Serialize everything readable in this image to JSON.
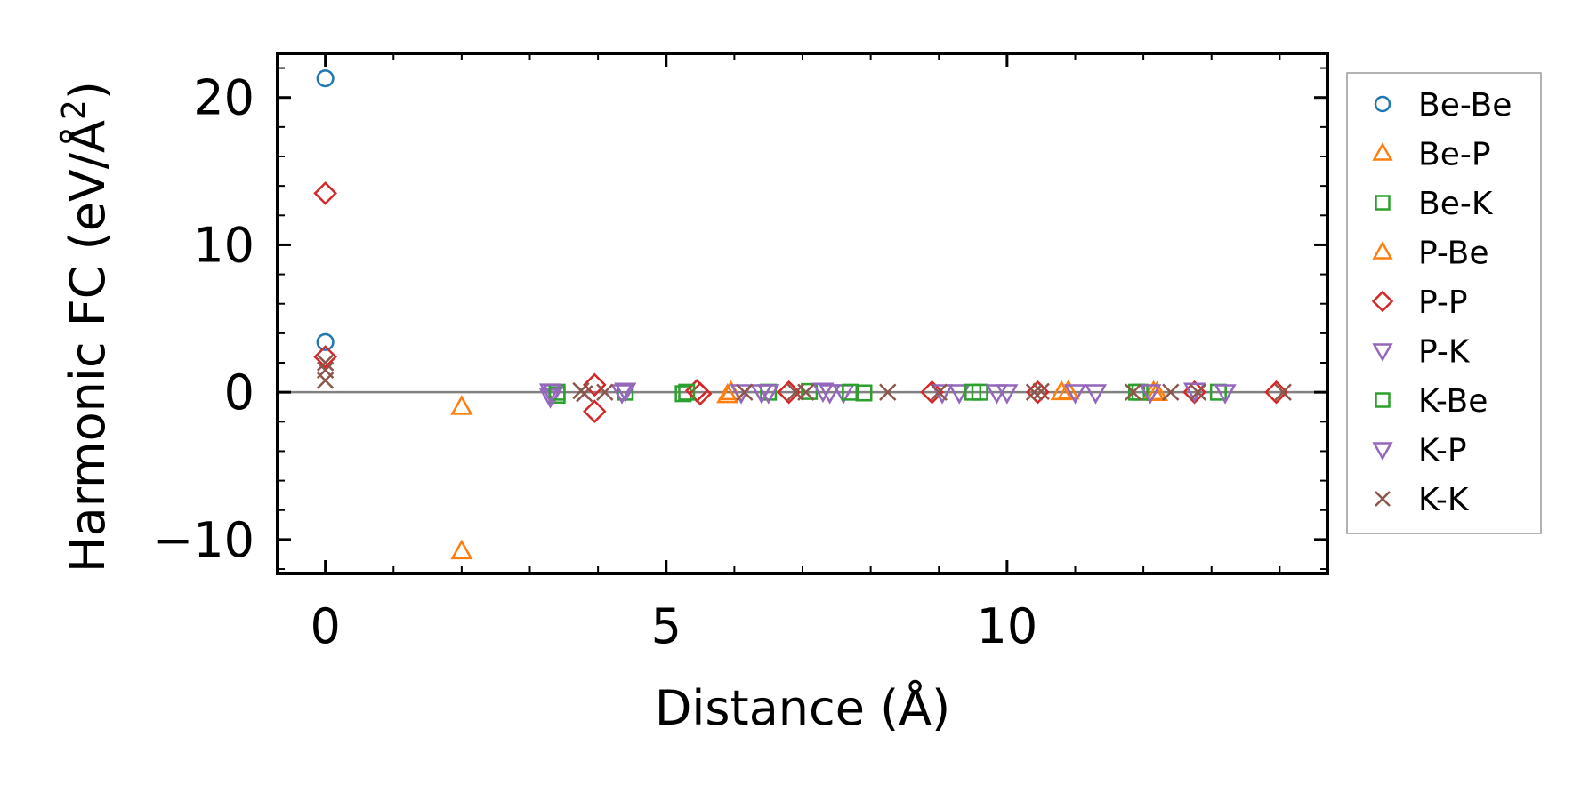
{
  "chart_data": {
    "type": "scatter",
    "xlabel": "Distance (Å)",
    "ylabel_main": "Harmonic FC (eV/Å",
    "ylabel_sup": "2",
    "ylabel_close": ")",
    "xlim": [
      -0.7,
      14.7
    ],
    "ylim": [
      -12.3,
      23.0
    ],
    "x_ticks": [
      0,
      5,
      10
    ],
    "x_tick_labels": [
      "0",
      "5",
      "10"
    ],
    "y_ticks": [
      -10,
      0,
      10,
      20
    ],
    "y_tick_labels": [
      "−10",
      "0",
      "10",
      "20"
    ],
    "x_minor_step": 1,
    "y_minor_step": 2,
    "zero_line": true,
    "grid": false,
    "legend_position": "right, outside",
    "series": [
      {
        "name": "Be-Be",
        "marker": "circle",
        "color": "#1f77b4",
        "points": [
          [
            0,
            21.3
          ],
          [
            0,
            3.4
          ]
        ]
      },
      {
        "name": "Be-P",
        "marker": "triangle-up",
        "color": "#ff7f0e",
        "points": [
          [
            2.0,
            -1.0
          ],
          [
            2.0,
            -10.8
          ],
          [
            5.9,
            -0.2
          ],
          [
            10.8,
            0.0
          ],
          [
            12.2,
            -0.05
          ]
        ]
      },
      {
        "name": "Be-K",
        "marker": "square",
        "color": "#2ca02c",
        "points": [
          [
            3.4,
            -0.2
          ],
          [
            4.4,
            0.0
          ],
          [
            5.25,
            -0.1
          ],
          [
            6.5,
            0.0
          ],
          [
            7.1,
            0.05
          ],
          [
            7.9,
            -0.05
          ],
          [
            9.6,
            0.0
          ],
          [
            11.9,
            0.0
          ],
          [
            13.1,
            0.0
          ]
        ]
      },
      {
        "name": "P-Be",
        "marker": "triangle-up",
        "color": "#ff7f0e",
        "points": [
          [
            5.95,
            0.0
          ],
          [
            10.9,
            0.05
          ],
          [
            12.15,
            0.0
          ]
        ]
      },
      {
        "name": "P-P",
        "marker": "diamond",
        "color": "#d62728",
        "points": [
          [
            0,
            13.5
          ],
          [
            0,
            2.4
          ],
          [
            3.95,
            0.5
          ],
          [
            3.95,
            -1.3
          ],
          [
            5.45,
            0.1
          ],
          [
            5.5,
            -0.1
          ],
          [
            6.8,
            0.0
          ],
          [
            8.9,
            0.0
          ],
          [
            10.45,
            0.0
          ],
          [
            12.75,
            0.0
          ],
          [
            13.95,
            0.0
          ]
        ]
      },
      {
        "name": "P-K",
        "marker": "triangle-down",
        "color": "#9467bd",
        "points": [
          [
            3.3,
            -0.3
          ],
          [
            3.35,
            0.0
          ],
          [
            4.4,
            0.1
          ],
          [
            6.1,
            0.0
          ],
          [
            6.4,
            0.0
          ],
          [
            7.3,
            0.1
          ],
          [
            7.6,
            0.0
          ],
          [
            9.3,
            0.0
          ],
          [
            9.85,
            0.0
          ],
          [
            11.3,
            0.0
          ],
          [
            12.75,
            0.1
          ],
          [
            13.2,
            0.0
          ]
        ]
      },
      {
        "name": "K-Be",
        "marker": "square",
        "color": "#2ca02c",
        "points": [
          [
            3.4,
            0.0
          ],
          [
            5.3,
            0.0
          ],
          [
            7.7,
            0.0
          ],
          [
            9.5,
            0.0
          ],
          [
            11.95,
            0.0
          ]
        ]
      },
      {
        "name": "K-P",
        "marker": "triangle-down",
        "color": "#9467bd",
        "points": [
          [
            3.3,
            0.05
          ],
          [
            4.35,
            0.0
          ],
          [
            6.5,
            0.0
          ],
          [
            7.4,
            0.0
          ],
          [
            9.05,
            0.0
          ],
          [
            10.0,
            0.0
          ],
          [
            11.0,
            0.0
          ],
          [
            12.1,
            0.0
          ]
        ]
      },
      {
        "name": "K-K",
        "marker": "x",
        "color": "#8c564b",
        "points": [
          [
            0,
            2.0
          ],
          [
            0,
            1.5
          ],
          [
            0,
            0.8
          ],
          [
            3.75,
            0.1
          ],
          [
            3.8,
            -0.1
          ],
          [
            4.1,
            0.0
          ],
          [
            6.15,
            0.0
          ],
          [
            6.9,
            0.0
          ],
          [
            7.05,
            0.0
          ],
          [
            8.25,
            0.0
          ],
          [
            9.0,
            0.0
          ],
          [
            10.4,
            0.0
          ],
          [
            10.5,
            0.05
          ],
          [
            11.85,
            0.0
          ],
          [
            12.4,
            0.0
          ],
          [
            12.8,
            0.0
          ],
          [
            14.05,
            0.0
          ]
        ]
      }
    ]
  }
}
